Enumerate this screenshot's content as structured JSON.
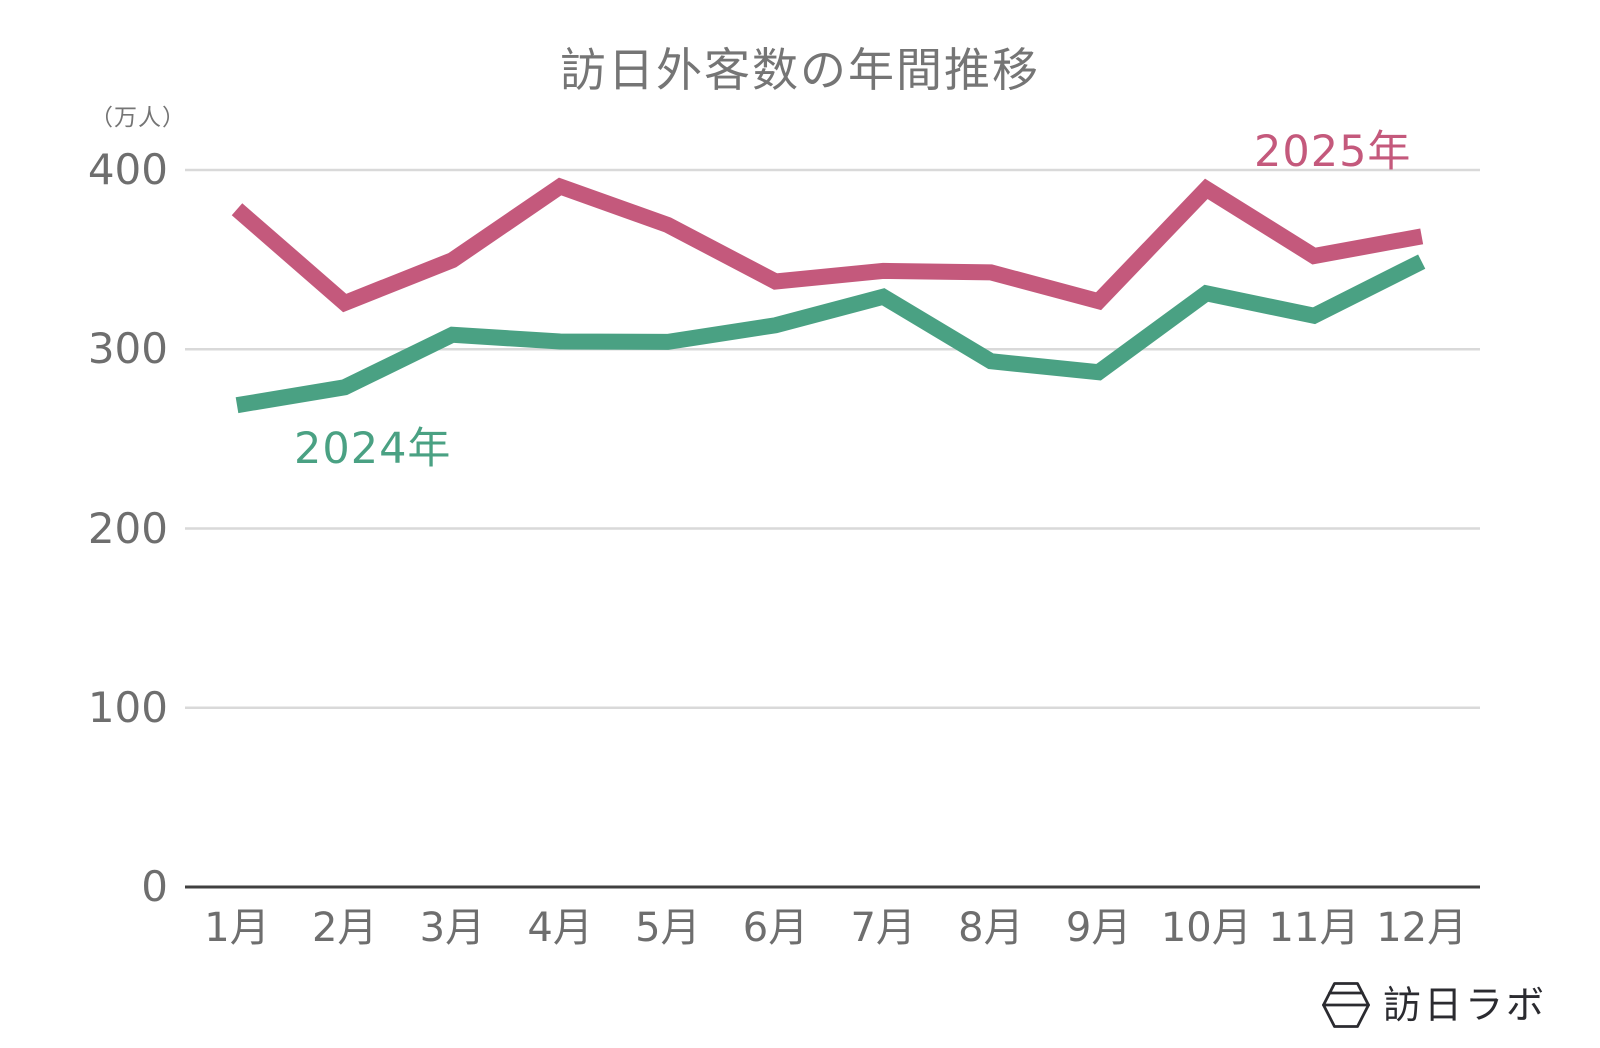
{
  "chart_data": {
    "type": "line",
    "title": "訪日外客数の年間推移",
    "y_unit": "（万人）",
    "categories": [
      "1月",
      "2月",
      "3月",
      "4月",
      "5月",
      "6月",
      "7月",
      "8月",
      "9月",
      "10月",
      "11月",
      "12月"
    ],
    "series": [
      {
        "name": "2024年",
        "color": "#4aa183",
        "values": [
          268.8,
          278.8,
          308.1,
          304.3,
          304.1,
          313.4,
          329.3,
          293.3,
          287.2,
          331.2,
          318.7,
          348.9
        ]
      },
      {
        "name": "2025年",
        "color": "#c4597c",
        "values": [
          378.1,
          325.8,
          349.7,
          390.8,
          369.3,
          337.8,
          343.7,
          342.9,
          326.8,
          389.5,
          352.0,
          363.0
        ]
      }
    ],
    "y_ticks": [
      400,
      300,
      200,
      100,
      0
    ],
    "ylim": [
      0,
      430
    ],
    "grid": "horizontal",
    "legend": "inline-labels",
    "colors": {
      "grid": "#d9d9d9",
      "axis": "#404040",
      "text": "#6e6e6e",
      "title": "#757575"
    }
  },
  "logo": {
    "text": "訪日ラボ"
  }
}
